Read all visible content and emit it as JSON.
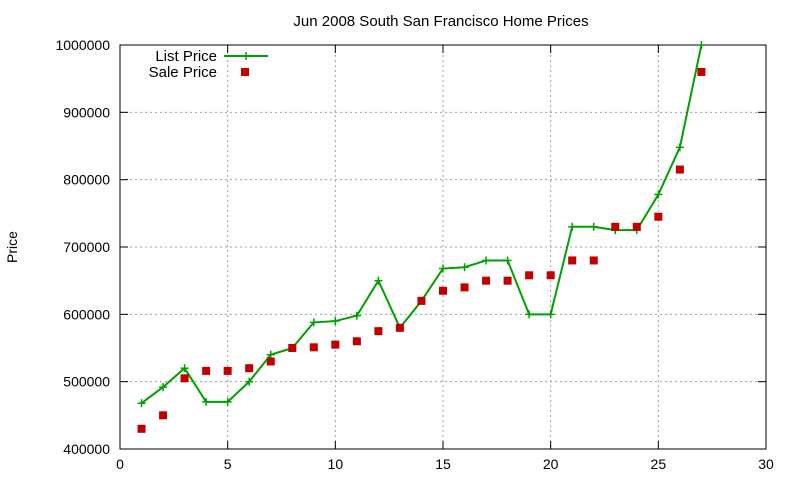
{
  "chart_data": {
    "type": "line",
    "title": "Jun 2008 South San Francisco Home Prices",
    "xlabel": "",
    "ylabel": "Price",
    "xlim": [
      0,
      30
    ],
    "ylim": [
      400000,
      1000000
    ],
    "xticks": [
      0,
      5,
      10,
      15,
      20,
      25,
      30
    ],
    "yticks": [
      400000,
      500000,
      600000,
      700000,
      800000,
      900000,
      1000000
    ],
    "grid": true,
    "legend_position": "top-left",
    "series": [
      {
        "name": "List Price",
        "style": "line+cross",
        "color": "#00a000",
        "x": [
          1,
          2,
          3,
          4,
          5,
          6,
          7,
          8,
          9,
          10,
          11,
          12,
          13,
          14,
          15,
          16,
          17,
          18,
          19,
          20,
          21,
          22,
          23,
          24,
          25,
          26,
          27
        ],
        "y": [
          468000,
          492000,
          520000,
          470000,
          470000,
          500000,
          540000,
          550000,
          588000,
          590000,
          598000,
          650000,
          580000,
          620000,
          668000,
          670000,
          680000,
          680000,
          600000,
          600000,
          730000,
          730000,
          725000,
          725000,
          778000,
          848000,
          1000000
        ]
      },
      {
        "name": "Sale Price",
        "style": "square",
        "color": "#c00000",
        "x": [
          1,
          2,
          3,
          4,
          5,
          6,
          7,
          8,
          9,
          10,
          11,
          12,
          13,
          14,
          15,
          16,
          17,
          18,
          19,
          20,
          21,
          22,
          23,
          24,
          25,
          26,
          27
        ],
        "y": [
          430000,
          450000,
          505000,
          516000,
          516000,
          520000,
          530000,
          550000,
          551000,
          555000,
          560000,
          575000,
          580000,
          620000,
          635000,
          640000,
          650000,
          650000,
          658000,
          658000,
          680000,
          680000,
          730000,
          730000,
          745000,
          815000,
          960000
        ]
      }
    ]
  }
}
